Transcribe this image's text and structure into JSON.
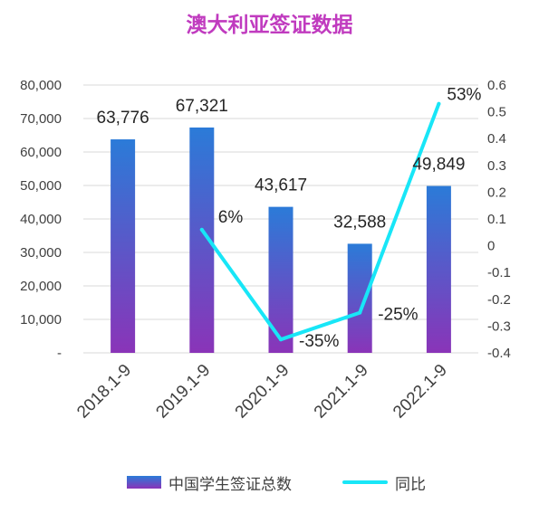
{
  "title": "澳大利亚签证数据",
  "chart_data": {
    "type": "bar",
    "categories": [
      "2018.1-9",
      "2019.1-9",
      "2020.1-9",
      "2021.1-9",
      "2022.1-9"
    ],
    "series": [
      {
        "name": "中国学生签证总数",
        "type": "bar",
        "values": [
          63776,
          67321,
          43617,
          32588,
          49849
        ],
        "labels": [
          "63,776",
          "67,321",
          "43,617",
          "32,588",
          "49,849"
        ],
        "color_top": "#2b7bd8",
        "color_bottom": "#8a34b8"
      },
      {
        "name": "同比",
        "type": "line",
        "axis": "right",
        "values": [
          null,
          0.06,
          -0.35,
          -0.25,
          0.53
        ],
        "labels": [
          "",
          "6%",
          "-35%",
          "-25%",
          "53%"
        ],
        "color": "#18e6f7"
      }
    ],
    "ylim": [
      0,
      80000
    ],
    "y_ticks": [
      "-",
      "10,000",
      "20,000",
      "30,000",
      "40,000",
      "50,000",
      "60,000",
      "70,000",
      "80,000"
    ],
    "y2lim": [
      -0.4,
      0.6
    ],
    "y2_ticks": [
      "-0.4",
      "-0.3",
      "-0.2",
      "-0.1",
      "0",
      "0.1",
      "0.2",
      "0.3",
      "0.4",
      "0.5",
      "0.6"
    ],
    "grid": true,
    "legend_position": "bottom"
  }
}
